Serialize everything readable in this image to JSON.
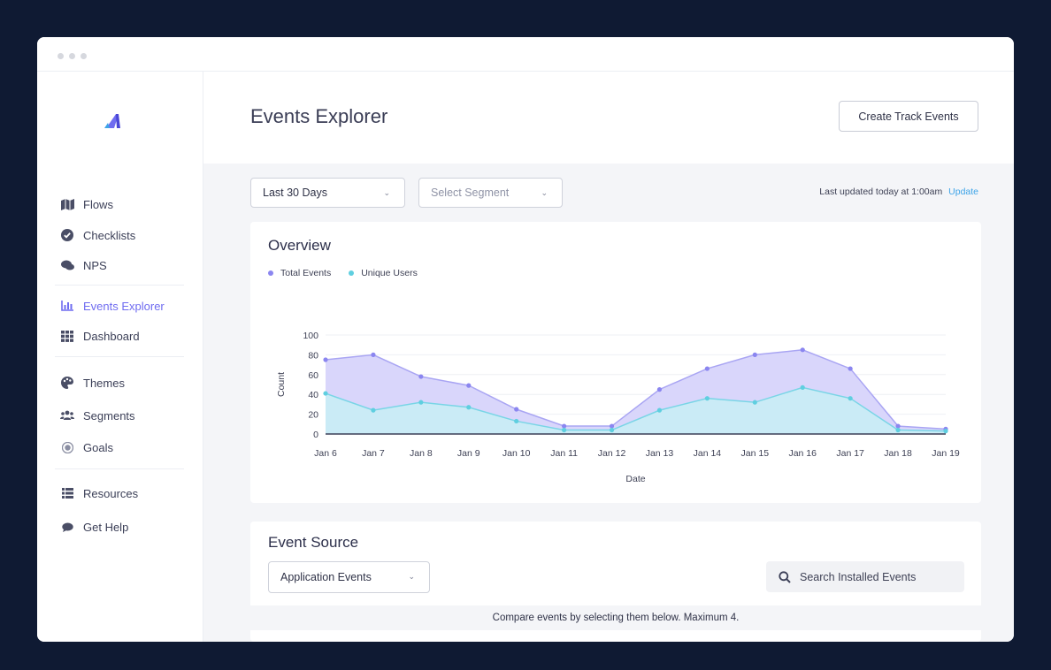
{
  "sidebar": {
    "items": [
      {
        "label": "Flows",
        "icon": "map-icon"
      },
      {
        "label": "Checklists",
        "icon": "check-circle-icon"
      },
      {
        "label": "NPS",
        "icon": "chat-icon"
      },
      {
        "label": "Events Explorer",
        "icon": "bar-chart-icon",
        "active": true
      },
      {
        "label": "Dashboard",
        "icon": "grid-icon"
      },
      {
        "label": "Themes",
        "icon": "palette-icon"
      },
      {
        "label": "Segments",
        "icon": "users-icon"
      },
      {
        "label": "Goals",
        "icon": "target-icon"
      },
      {
        "label": "Resources",
        "icon": "list-icon"
      },
      {
        "label": "Get Help",
        "icon": "speech-bubble-icon"
      }
    ]
  },
  "header": {
    "title": "Events Explorer",
    "create_button": "Create Track Events"
  },
  "filters": {
    "date_range": "Last 30 Days",
    "segment_placeholder": "Select Segment",
    "last_updated": "Last updated today at 1:00am",
    "update_link": "Update"
  },
  "overview": {
    "title": "Overview",
    "legend": [
      {
        "label": "Total Events",
        "color": "#8b86f0"
      },
      {
        "label": "Unique Users",
        "color": "#5fcfe0"
      }
    ]
  },
  "chart_data": {
    "type": "area",
    "categories": [
      "Jan 6",
      "Jan 7",
      "Jan 8",
      "Jan 9",
      "Jan 10",
      "Jan 11",
      "Jan 12",
      "Jan 13",
      "Jan 14",
      "Jan 15",
      "Jan 16",
      "Jan 17",
      "Jan 18",
      "Jan 19"
    ],
    "series": [
      {
        "name": "Total Events",
        "color": "#8b86f0",
        "values": [
          75,
          80,
          58,
          49,
          25,
          8,
          8,
          45,
          66,
          80,
          85,
          66,
          8,
          5
        ]
      },
      {
        "name": "Unique Users",
        "color": "#5fcfe0",
        "values": [
          41,
          24,
          32,
          27,
          13,
          4,
          4,
          24,
          36,
          32,
          47,
          36,
          4,
          3
        ]
      }
    ],
    "ylabel": "Count",
    "xlabel": "Date",
    "ylim": [
      0,
      100
    ],
    "yticks": [
      0,
      20,
      40,
      60,
      80,
      100
    ],
    "grid": true
  },
  "event_source": {
    "title": "Event Source",
    "source_select": "Application Events",
    "search_placeholder": "Search Installed Events",
    "compare_hint": "Compare events by selecting them below. Maximum 4."
  }
}
